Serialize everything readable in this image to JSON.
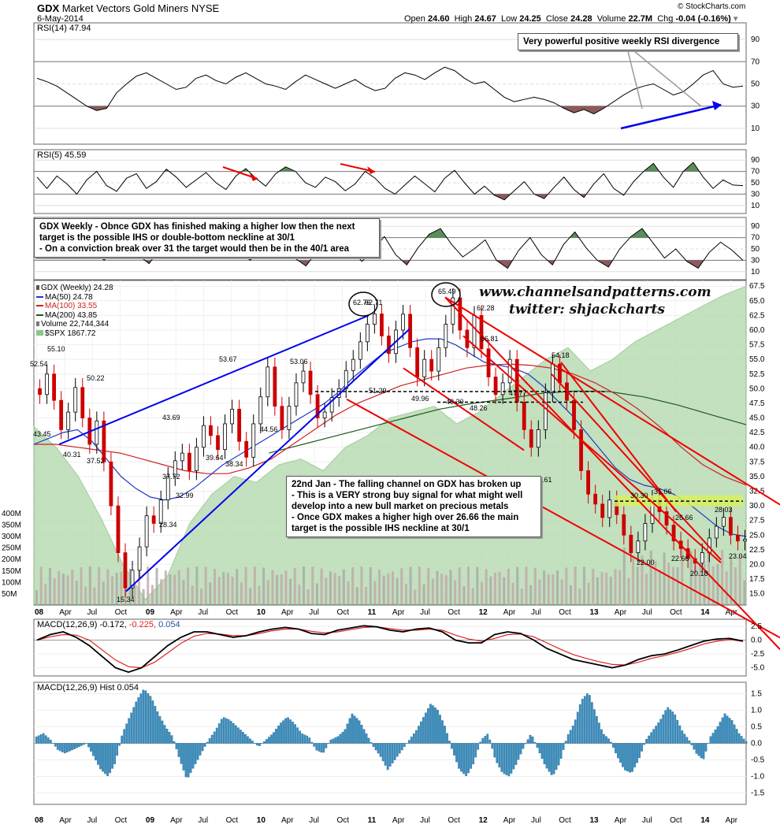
{
  "header": {
    "symbol": "GDX",
    "name": "Market Vectors Gold Miners",
    "exchange": "NYSE",
    "date": "6-May-2014",
    "source": "© StockCharts.com",
    "ohlc": {
      "open_label": "Open",
      "open": "24.60",
      "high_label": "High",
      "high": "24.67",
      "low_label": "Low",
      "low": "24.25",
      "close_label": "Close",
      "close": "24.28",
      "volume_label": "Volume",
      "volume": "22.7M",
      "chg_label": "Chg",
      "chg": "-0.04 (-0.16%)"
    }
  },
  "watermark": {
    "site": "www.channelsandpatterns.com",
    "twitter": "twitter: shjackcharts"
  },
  "notes": {
    "rsi_divergence": "Very powerful positive weekly RSI divergence",
    "gdx_weekly": "GDX Weekly - Obnce GDX has finished making a higher low then the next\ntarget is the possible IHS or double-bottom neckline at 30/1\n- On a conviction break over 31 the target would then be in the 40/1 area",
    "jan22": "22nd Jan - The falling channel on GDX has broken up\n- This is a VERY strong buy signal for what might well\ndevelop into a new bull market on precious metals\n- Once GDX makes a higher high over 26.66 the main\ntarget is the possible IHS neckline at 30/1"
  },
  "legend": {
    "title": "GDX (Weekly) 24.28",
    "ma50": "MA(50) 24.78",
    "ma100": "MA(100) 33.55",
    "ma200": "MA(200) 43.85",
    "volume": "Volume 22,744,344",
    "spx": "$SPX 1867.72"
  },
  "colors": {
    "candle_up": "#000000",
    "candle_down": "#cc0000",
    "ma50": "#1f3bc4",
    "ma100": "#cc2222",
    "ma200": "#1d5a1d",
    "spx_fill": "#b9dbb4",
    "trend_blue": "#0000ee",
    "trend_red": "#ee0000",
    "rsi_pos": "#5b8c5b",
    "rsi_neg": "#8b5a5a",
    "macd_hist": "#3a8fc0",
    "neckline_band": "#d7ee60"
  },
  "chart_data": [
    {
      "panel": "rsi14",
      "type": "line",
      "label": "RSI(14) 47.94",
      "y_ticks": [
        10,
        30,
        50,
        70,
        90
      ],
      "ylim": [
        0,
        100
      ],
      "overbought": 70,
      "oversold": 30,
      "values": [
        55,
        52,
        48,
        42,
        36,
        30,
        26,
        28,
        42,
        50,
        57,
        60,
        55,
        50,
        45,
        47,
        55,
        58,
        53,
        50,
        56,
        60,
        55,
        50,
        48,
        45,
        52,
        58,
        54,
        50,
        46,
        50,
        54,
        48,
        44,
        46,
        55,
        60,
        58,
        54,
        60,
        65,
        62,
        55,
        50,
        52,
        45,
        38,
        34,
        36,
        38,
        36,
        33,
        28,
        24,
        27,
        23,
        28,
        34,
        40,
        45,
        48,
        50,
        45,
        40,
        43,
        50,
        58,
        62,
        50,
        47,
        48
      ]
    },
    {
      "panel": "rsi5",
      "type": "line",
      "label": "RSI(5) 45.59",
      "y_ticks": [
        10,
        30,
        50,
        70,
        90
      ],
      "ylim": [
        0,
        100
      ],
      "overbought": 70,
      "oversold": 30,
      "values": [
        60,
        40,
        62,
        48,
        30,
        55,
        70,
        45,
        35,
        58,
        66,
        40,
        52,
        74,
        60,
        42,
        55,
        68,
        50,
        38,
        62,
        75,
        58,
        44,
        66,
        78,
        70,
        50,
        42,
        60,
        52,
        36,
        48,
        70,
        58,
        40,
        30,
        46,
        62,
        48,
        34,
        58,
        72,
        50,
        30,
        44,
        28,
        20,
        36,
        52,
        30,
        22,
        42,
        60,
        38,
        24,
        48,
        66,
        40,
        28,
        52,
        70,
        84,
        60,
        42,
        70,
        86,
        60,
        40,
        55,
        46,
        45
      ]
    },
    {
      "panel": "rsi_mid",
      "type": "line",
      "label": "",
      "y_ticks": [
        10,
        30,
        50,
        70,
        90
      ],
      "ylim": [
        0,
        100
      ],
      "overbought": 70,
      "oversold": 30,
      "values": [
        55,
        70,
        40,
        60,
        82,
        48,
        30,
        56,
        72,
        40,
        24,
        52,
        76,
        60,
        38,
        44,
        68,
        80,
        52,
        30,
        46,
        74,
        56,
        34,
        20,
        46,
        70,
        84,
        50,
        28,
        48,
        72,
        40,
        22,
        52,
        76,
        86,
        58,
        36,
        50,
        66,
        30,
        16,
        48,
        70,
        40,
        22,
        58,
        80,
        52,
        30,
        18,
        50,
        72,
        86,
        60,
        34,
        50,
        28,
        16,
        44,
        62,
        48,
        30
      ]
    },
    {
      "panel": "price",
      "type": "candlestick",
      "label": "GDX (Weekly) 24.28",
      "x_ticks": [
        "08",
        "Apr",
        "Jul",
        "Oct",
        "09",
        "Apr",
        "Jul",
        "Oct",
        "10",
        "Apr",
        "Jul",
        "Oct",
        "11",
        "Apr",
        "Jul",
        "Oct",
        "12",
        "Apr",
        "Jul",
        "Oct",
        "13",
        "Apr",
        "Jul",
        "Oct",
        "14",
        "Apr"
      ],
      "y_ticks": [
        15.0,
        17.5,
        20.0,
        22.5,
        25.0,
        27.5,
        30.0,
        32.5,
        35.0,
        37.5,
        40.0,
        42.5,
        45.0,
        47.5,
        50.0,
        52.5,
        55.0,
        57.5,
        60.0,
        62.5,
        65.0,
        67.5
      ],
      "ylim": [
        13.2,
        68.2
      ],
      "volume_ticks": [
        "50M",
        "100M",
        "150M",
        "200M",
        "250M",
        "300M",
        "350M",
        "400M"
      ],
      "closes": [
        49,
        52.5,
        48,
        43,
        46,
        50.2,
        45,
        40.5,
        44.5,
        37.5,
        30,
        22,
        16,
        19,
        23,
        28.3,
        27,
        31,
        35,
        37.7,
        39,
        36,
        40,
        43.7,
        42,
        39.6,
        44,
        46.5,
        41,
        38.3,
        44,
        48.6,
        53.7,
        47,
        43,
        47,
        51,
        53,
        49,
        45,
        46,
        48.5,
        50,
        53.1,
        55,
        58,
        61,
        62.76,
        59,
        56,
        60,
        62.7,
        57,
        52,
        55,
        53,
        57,
        61,
        65.5,
        60,
        57,
        62.5,
        56.8,
        52,
        49,
        51,
        55,
        47.7,
        43,
        40,
        43,
        49.3,
        54.2,
        51,
        48,
        43,
        36,
        32,
        30.3,
        28,
        31,
        28.5,
        25,
        22,
        24,
        27,
        31.1,
        29,
        26.7,
        24,
        22.7,
        21,
        20.2,
        22,
        24.5,
        26.5,
        28.03,
        25,
        24,
        24.28
      ],
      "ma50": [
        40.5,
        41.5,
        42.5,
        43,
        41,
        38,
        35,
        33,
        31.5,
        31,
        31.5,
        33,
        35,
        37,
        38.5,
        40,
        41.5,
        43,
        44.5,
        46,
        47.5,
        49.5,
        52,
        54,
        56,
        57,
        58,
        58.5,
        58.5,
        57.5,
        56,
        54.5,
        54,
        53.5,
        52.5,
        50.5,
        48,
        45.5,
        42.5,
        39.5,
        36.5,
        34.5,
        33.5,
        33,
        32,
        30.5,
        28.5,
        26.5,
        25.2,
        24.78
      ],
      "ma100": [
        40.5,
        40.5,
        40,
        39.5,
        39,
        38,
        37,
        36,
        35.5,
        35.5,
        36.5,
        38,
        40.5,
        43,
        45.5,
        47.5,
        49,
        50.5,
        51.5,
        52.5,
        53.5,
        54,
        54.2,
        54,
        53.5,
        52.5,
        51,
        49,
        46.5,
        43.5,
        40,
        37,
        35,
        33.55
      ],
      "ma200": [
        39,
        40.5,
        42,
        43.5,
        45,
        46.5,
        47.5,
        48.3,
        49.2,
        49.6,
        49.5,
        48.6,
        47.2,
        45.5,
        43.85
      ],
      "spx": [
        43.5,
        40,
        35,
        28,
        20,
        14,
        18,
        27,
        32,
        35,
        34,
        37,
        38,
        36,
        40,
        42,
        45,
        46,
        47,
        44,
        46,
        49,
        52,
        55,
        57,
        53,
        55,
        58,
        60,
        62,
        64,
        66,
        67.5
      ],
      "peak_labels": [
        "52.54",
        "55.10",
        "50.22",
        "43.45",
        "40.31",
        "37.52",
        "15.34",
        "28.34",
        "37.72",
        "43.69",
        "32.99",
        "39.64",
        "53.67",
        "38.34",
        "44.56",
        "53.06",
        "62.76",
        "62.71",
        "51.29",
        "49.96",
        "65.49",
        "62.28",
        "49.30",
        "56.81",
        "48.26",
        "47.77",
        "39.61",
        "54.18",
        "30.30",
        "31.06",
        "26.66",
        "22.00",
        "22.66",
        "20.18",
        "28.03",
        "23.04"
      ]
    },
    {
      "panel": "macd",
      "type": "line",
      "label": "MACD(12,26,9)",
      "label_values": [
        "-0.172",
        "-0.225",
        "0.054"
      ],
      "y_ticks": [
        "2.5",
        "0.0",
        "-2.5",
        "-5.0"
      ],
      "ylim": [
        -6.2,
        3.5
      ],
      "macd": [
        0,
        1,
        1.5,
        0.5,
        -1,
        -3,
        -5,
        -5.8,
        -5,
        -3,
        -1,
        0.5,
        1.5,
        1.5,
        1,
        0.5,
        0.8,
        1.5,
        2,
        2.3,
        2,
        1.2,
        1,
        1.8,
        2.2,
        2.6,
        2.4,
        1.8,
        1.5,
        2,
        2.2,
        1.5,
        0,
        -0.5,
        -0.5,
        1,
        1.5,
        1.2,
        0,
        -1.5,
        -2.5,
        -3.5,
        -4,
        -4.5,
        -5,
        -4.5,
        -3.5,
        -2.8,
        -2.5,
        -1.8,
        -1,
        -0.2,
        0.2,
        0.3,
        -0.17
      ],
      "signal": [
        0,
        0.6,
        1,
        0.9,
        0,
        -1.8,
        -3.6,
        -4.8,
        -5,
        -4,
        -2.3,
        -0.6,
        0.7,
        1.2,
        1.1,
        0.8,
        0.8,
        1.2,
        1.7,
        2,
        2,
        1.6,
        1.3,
        1.5,
        1.9,
        2.3,
        2.4,
        2.1,
        1.8,
        1.8,
        2,
        1.8,
        0.9,
        0.2,
        -0.2,
        0.3,
        1,
        1.1,
        0.6,
        -0.5,
        -1.6,
        -2.6,
        -3.3,
        -3.9,
        -4.4,
        -4.5,
        -4,
        -3.3,
        -2.8,
        -2.2,
        -1.5,
        -0.7,
        -0.2,
        0.1,
        -0.23
      ]
    },
    {
      "panel": "macd_hist",
      "type": "bar",
      "label": "MACD(12,26,9) Hist 0.054",
      "y_ticks": [
        "1.5",
        "1.0",
        "0.5",
        "0.0",
        "-0.5",
        "-1.0",
        "-1.5"
      ],
      "ylim": [
        -1.75,
        1.75
      ],
      "x_ticks": [
        "08",
        "Apr",
        "Jul",
        "Oct",
        "09",
        "Apr",
        "Jul",
        "Oct",
        "10",
        "Apr",
        "Jul",
        "Oct",
        "11",
        "Apr",
        "Jul",
        "Oct",
        "12",
        "Apr",
        "Jul",
        "Oct",
        "13",
        "Apr",
        "Jul",
        "Oct",
        "14",
        "Apr"
      ],
      "values": [
        0.2,
        0.3,
        0.1,
        -0.2,
        -0.3,
        -0.2,
        -0.1,
        0,
        -0.4,
        -0.8,
        -1.0,
        -0.6,
        0.3,
        0.8,
        1.3,
        1.65,
        1.4,
        0.9,
        0.5,
        0.2,
        -0.5,
        -1.1,
        -0.7,
        -0.3,
        0.1,
        0.4,
        0.8,
        0.7,
        0.5,
        0.3,
        0.1,
        -0.1,
        0.1,
        0.3,
        0.6,
        0.8,
        0.6,
        0.3,
        0.2,
        -0.2,
        -0.3,
        0.1,
        0.2,
        0.4,
        0.9,
        0.7,
        0.3,
        -0.1,
        -0.4,
        -0.8,
        -0.5,
        -0.2,
        0.1,
        0.4,
        0.8,
        1.2,
        1.0,
        0.5,
        -0.2,
        -0.8,
        -1.0,
        -0.6,
        0.1,
        0.3,
        -0.5,
        -0.9,
        -1.0,
        -0.6,
        -0.1,
        0.3,
        -0.2,
        -0.7,
        -1.0,
        -0.6,
        0.2,
        0.6,
        1.3,
        1.55,
        0.9,
        0.3,
        0.1,
        -0.4,
        -0.8,
        -0.9,
        -0.5,
        0.1,
        0.4,
        0.7,
        1.1,
        0.9,
        0.4,
        0.1,
        -0.3,
        -0.5,
        0.2,
        0.5,
        0.9,
        0.7,
        0.3,
        0.05
      ]
    }
  ]
}
